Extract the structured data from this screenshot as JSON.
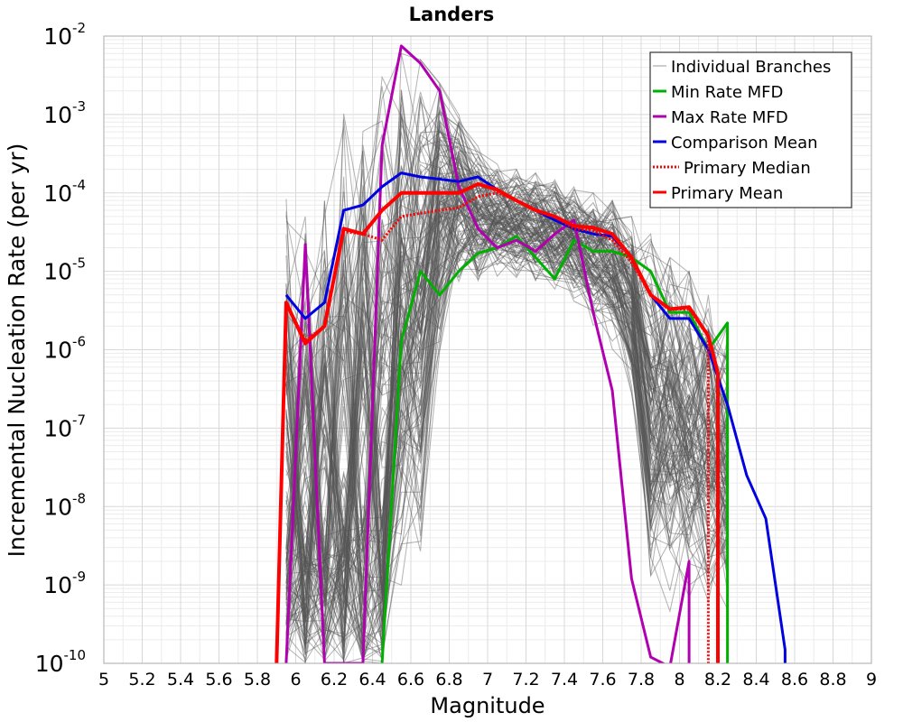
{
  "chart_data": {
    "type": "line",
    "title": "Landers",
    "xlabel": "Magnitude",
    "ylabel": "Incremental Nucleation Rate (per yr)",
    "xlim": [
      5,
      9
    ],
    "ylim": [
      1e-10,
      0.01
    ],
    "yscale": "log",
    "grid": true,
    "legend_position": "top-right",
    "x_ticks": [
      "5",
      "5.2",
      "5.4",
      "5.6",
      "5.8",
      "6",
      "6.2",
      "6.4",
      "6.6",
      "6.8",
      "7",
      "7.2",
      "7.4",
      "7.6",
      "7.8",
      "8",
      "8.2",
      "8.4",
      "8.6",
      "8.8",
      "9"
    ],
    "y_ticks": [
      {
        "base": "10",
        "exp": "-10"
      },
      {
        "base": "10",
        "exp": "-9"
      },
      {
        "base": "10",
        "exp": "-8"
      },
      {
        "base": "10",
        "exp": "-7"
      },
      {
        "base": "10",
        "exp": "-6"
      },
      {
        "base": "10",
        "exp": "-5"
      },
      {
        "base": "10",
        "exp": "-4"
      },
      {
        "base": "10",
        "exp": "-3"
      },
      {
        "base": "10",
        "exp": "-2"
      }
    ],
    "individual_branches": {
      "name": "Individual Branches",
      "color": "#555555",
      "count_approx": 400,
      "note_values": "band of many thin gray curves bounded roughly by the envelope below",
      "envelope_x": [
        5.95,
        6.05,
        6.15,
        6.25,
        6.35,
        6.45,
        6.55,
        6.65,
        6.75,
        6.85,
        6.95,
        7.05,
        7.15,
        7.25,
        7.35,
        7.45,
        7.55,
        7.65,
        7.75,
        7.85,
        7.95,
        8.05,
        8.15,
        8.25
      ],
      "envelope_upper": [
        0.0001,
        5e-05,
        8e-05,
        0.0013,
        0.0012,
        0.003,
        0.006,
        0.005,
        0.003,
        0.001,
        0.0004,
        0.00025,
        0.0002,
        0.00018,
        0.00015,
        0.00012,
        0.0001,
        8e-05,
        5e-05,
        3e-05,
        1.5e-05,
        1e-05,
        5e-06,
        2e-06
      ],
      "envelope_lower": [
        1e-10,
        1e-10,
        1e-10,
        1e-10,
        1e-10,
        1e-10,
        1e-10,
        1e-10,
        1e-07,
        2e-06,
        3e-06,
        5e-06,
        4e-06,
        4e-06,
        3e-06,
        2e-06,
        1e-06,
        5e-07,
        1e-07,
        1e-10,
        1e-10,
        1e-10,
        1e-10,
        1e-10
      ]
    },
    "series": [
      {
        "name": "Min Rate MFD",
        "color": "#00b000",
        "style": "solid",
        "x": [
          6.45,
          6.55,
          6.65,
          6.75,
          6.85,
          6.95,
          7.05,
          7.15,
          7.25,
          7.35,
          7.45,
          7.55,
          7.65,
          7.75,
          7.85,
          7.95,
          8.05,
          8.15,
          8.25,
          8.25
        ],
        "y": [
          1e-10,
          1.3e-06,
          1e-05,
          5e-06,
          1e-05,
          1.7e-05,
          2e-05,
          2.8e-05,
          1.5e-05,
          8e-06,
          2.5e-05,
          1.8e-05,
          1.8e-05,
          1.5e-05,
          1e-05,
          3e-06,
          3e-06,
          1e-06,
          2.2e-06,
          1e-10
        ]
      },
      {
        "name": "Max Rate MFD",
        "color": "#b000b0",
        "style": "solid",
        "x": [
          5.95,
          6.05,
          6.15,
          6.35,
          6.45,
          6.55,
          6.65,
          6.75,
          6.85,
          6.95,
          7.05,
          7.15,
          7.25,
          7.35,
          7.45,
          7.55,
          7.65,
          7.75,
          7.85,
          7.95,
          8.05,
          8.05
        ],
        "y": [
          1e-10,
          2.2e-05,
          1e-10,
          1e-10,
          0.0004,
          0.0075,
          0.0045,
          0.002,
          0.00012,
          3.5e-05,
          2e-05,
          2.5e-05,
          1.8e-05,
          3e-05,
          4.5e-05,
          3e-06,
          3e-07,
          1.2e-09,
          1.2e-10,
          9e-11,
          2e-09,
          1e-10
        ]
      },
      {
        "name": "Comparison Mean",
        "color": "#0000e0",
        "style": "solid",
        "x": [
          5.95,
          6.05,
          6.15,
          6.25,
          6.35,
          6.45,
          6.55,
          6.65,
          6.75,
          6.85,
          6.95,
          7.05,
          7.15,
          7.25,
          7.35,
          7.45,
          7.55,
          7.65,
          7.75,
          7.85,
          7.95,
          8.05,
          8.15,
          8.25,
          8.35,
          8.45,
          8.55,
          8.55
        ],
        "y": [
          5e-06,
          2.5e-06,
          4e-06,
          6e-05,
          7e-05,
          0.00012,
          0.00018,
          0.00016,
          0.00015,
          0.00014,
          0.00016,
          0.00011,
          8e-05,
          6e-05,
          4.5e-05,
          3.5e-05,
          3e-05,
          2.8e-05,
          1.5e-05,
          5e-06,
          2.5e-06,
          2.5e-06,
          1e-06,
          2e-07,
          2.5e-08,
          7e-09,
          1.5e-10,
          1e-10
        ]
      },
      {
        "name": "Primary Median",
        "color": "#ff0000",
        "style": "dotted",
        "x": [
          5.9,
          5.95,
          6.05,
          6.15,
          6.25,
          6.35,
          6.45,
          6.55,
          6.65,
          6.75,
          6.85,
          6.95,
          7.05,
          7.15,
          7.25,
          7.35,
          7.45,
          7.55,
          7.65,
          7.75,
          7.85,
          7.95,
          8.05,
          8.15,
          8.15
        ],
        "y": [
          1e-10,
          4e-06,
          1.3e-06,
          2e-06,
          3.2e-05,
          3e-05,
          2.5e-05,
          5e-05,
          5.5e-05,
          6e-05,
          6.5e-05,
          9e-05,
          0.0001,
          8e-05,
          6e-05,
          5e-05,
          3.5e-05,
          3.3e-05,
          2.5e-05,
          1.3e-05,
          5e-06,
          3.3e-06,
          3.3e-06,
          1.5e-06,
          1e-10
        ]
      },
      {
        "name": "Primary Mean",
        "color": "#ff0000",
        "style": "solid",
        "x": [
          5.9,
          5.95,
          6.05,
          6.15,
          6.25,
          6.35,
          6.45,
          6.55,
          6.65,
          6.75,
          6.85,
          6.95,
          7.05,
          7.15,
          7.25,
          7.35,
          7.45,
          7.55,
          7.65,
          7.75,
          7.85,
          7.95,
          8.05,
          8.15,
          8.2,
          8.2
        ],
        "y": [
          1e-10,
          4e-06,
          1.2e-06,
          2e-06,
          3.5e-05,
          3e-05,
          6e-05,
          0.0001,
          0.0001,
          0.0001,
          0.0001,
          0.00013,
          0.00011,
          8e-05,
          6e-05,
          5e-05,
          3.8e-05,
          3.6e-05,
          3e-05,
          1.5e-05,
          5e-06,
          3.3e-06,
          3.5e-06,
          1.5e-06,
          5e-07,
          1e-10
        ]
      }
    ]
  }
}
